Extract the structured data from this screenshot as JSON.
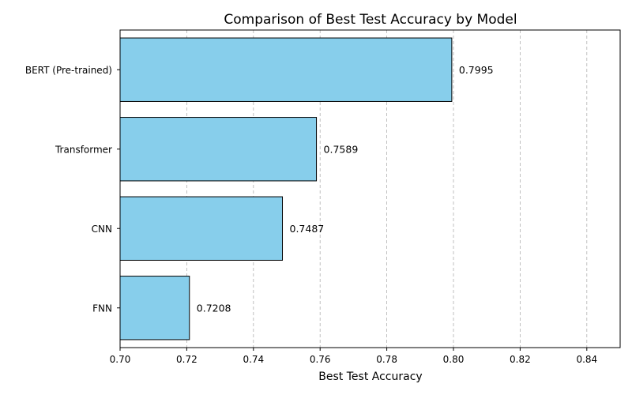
{
  "chart_data": {
    "type": "bar",
    "orientation": "horizontal",
    "title": "Comparison of Best Test Accuracy by Model",
    "xlabel": "Best Test Accuracy",
    "ylabel": "",
    "categories": [
      "BERT (Pre-trained)",
      "Transformer",
      "CNN",
      "FNN"
    ],
    "values": [
      0.7995,
      0.7589,
      0.7487,
      0.7208
    ],
    "value_labels": [
      "0.7995",
      "0.7589",
      "0.7487",
      "0.7208"
    ],
    "xlim": [
      0.7,
      0.85
    ],
    "xticks": [
      "0.70",
      "0.72",
      "0.74",
      "0.76",
      "0.78",
      "0.80",
      "0.82",
      "0.84"
    ],
    "grid": "x-dashed",
    "bar_color": "#87ceeb",
    "edge_color": "#000000",
    "grid_color": "#b0b0b0"
  }
}
